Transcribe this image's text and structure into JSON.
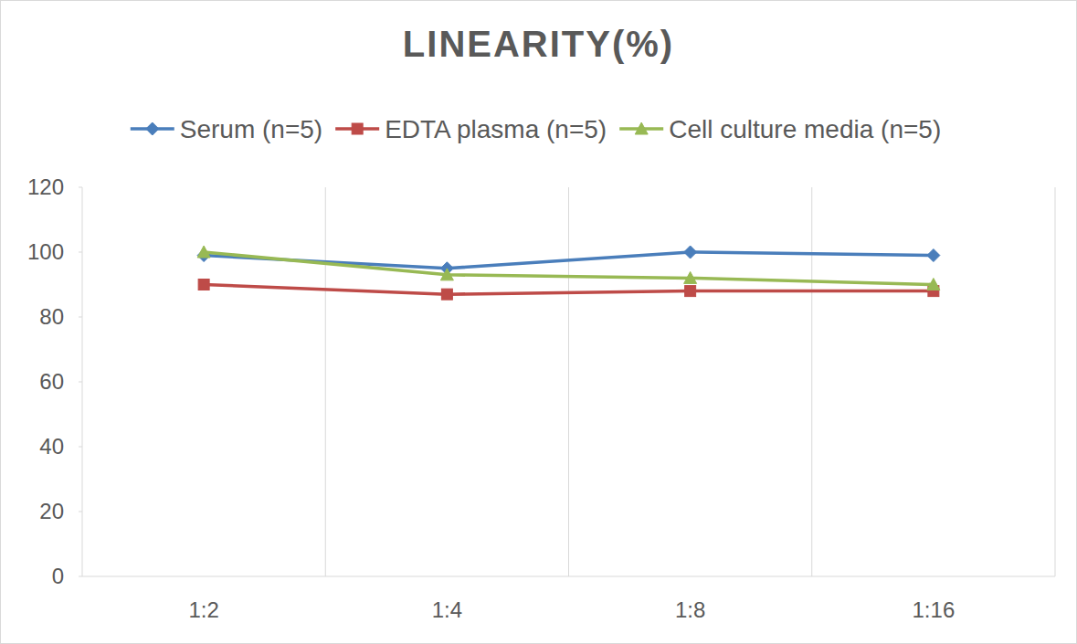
{
  "chart_data": {
    "type": "line",
    "title": "LINEARITY(%)",
    "categories": [
      "1:2",
      "1:4",
      "1:8",
      "1:16"
    ],
    "series": [
      {
        "name": "Serum (n=5)",
        "color": "#4a7ebb",
        "marker": "diamond",
        "values": [
          99,
          95,
          100,
          99
        ]
      },
      {
        "name": "EDTA plasma (n=5)",
        "color": "#be4b48",
        "marker": "square",
        "values": [
          90,
          87,
          88,
          88
        ]
      },
      {
        "name": "Cell culture media (n=5)",
        "color": "#98b954",
        "marker": "triangle",
        "values": [
          100,
          93,
          92,
          90
        ]
      }
    ],
    "ylim": [
      0,
      120
    ],
    "yticks": [
      0,
      20,
      40,
      60,
      80,
      100,
      120
    ],
    "grid": true,
    "legend": "top"
  }
}
